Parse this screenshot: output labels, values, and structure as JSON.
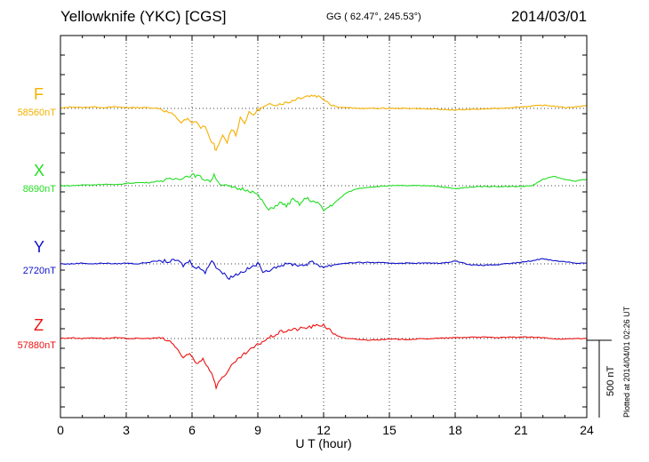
{
  "header": {
    "station": "Yellowknife (YKC)  [CGS]",
    "coords": "GG ( 62.47°, 245.53°)",
    "date": "2014/03/01"
  },
  "side_note": "Plotted at 2014/04/01 02:26 UT",
  "chart_data": {
    "type": "line",
    "xlabel": "U T (hour)",
    "xlim": [
      0,
      24
    ],
    "xticks": [
      "0",
      "3",
      "6",
      "9",
      "12",
      "15",
      "18",
      "21",
      "24"
    ],
    "grid": true,
    "scale_bar": {
      "label": "500 nT",
      "value_nT": 500
    },
    "series": [
      {
        "name": "F",
        "baseline_label": "58560nT",
        "baseline_nT": 58560,
        "color": "#f5b000",
        "x": [
          0,
          0.5,
          1,
          1.5,
          2,
          2.5,
          3,
          3.5,
          4,
          4.5,
          5,
          5.3,
          5.5,
          5.8,
          6,
          6.2,
          6.4,
          6.6,
          6.8,
          7,
          7.1,
          7.2,
          7.4,
          7.6,
          7.8,
          8,
          8.2,
          8.4,
          8.6,
          8.8,
          9,
          9.3,
          9.6,
          10,
          10.4,
          10.8,
          11.2,
          11.6,
          12,
          12.3,
          12.6,
          13,
          13.5,
          14,
          15,
          16,
          17,
          18,
          19,
          20,
          21,
          22,
          22.5,
          23,
          23.5,
          24
        ],
        "y": [
          0,
          10,
          5,
          10,
          5,
          10,
          5,
          5,
          5,
          0,
          -30,
          -60,
          -90,
          -70,
          -100,
          -80,
          -130,
          -110,
          -200,
          -230,
          -280,
          -240,
          -180,
          -220,
          -130,
          -170,
          -60,
          -90,
          -30,
          -40,
          -10,
          10,
          25,
          30,
          40,
          65,
          80,
          85,
          65,
          30,
          10,
          5,
          0,
          0,
          0,
          0,
          -5,
          -10,
          -5,
          0,
          10,
          20,
          15,
          5,
          10,
          20
        ]
      },
      {
        "name": "X",
        "baseline_label": "8690nT",
        "baseline_nT": 8690,
        "color": "#22dd22",
        "x": [
          0,
          0.5,
          1,
          1.5,
          2,
          2.5,
          3,
          3.5,
          4,
          4.5,
          5,
          5.5,
          6,
          6.3,
          6.6,
          6.9,
          7,
          7.2,
          7.5,
          7.8,
          8,
          8.3,
          8.6,
          8.9,
          9.1,
          9.3,
          9.5,
          9.8,
          10,
          10.3,
          10.6,
          10.9,
          11.2,
          11.5,
          11.8,
          12,
          12.3,
          12.6,
          13,
          13.5,
          14,
          15,
          16,
          17,
          18,
          19,
          20,
          21,
          21.5,
          22,
          22.5,
          23,
          23.5,
          24
        ],
        "y": [
          0,
          0,
          5,
          5,
          10,
          5,
          15,
          20,
          20,
          30,
          40,
          50,
          70,
          60,
          40,
          30,
          80,
          20,
          0,
          -10,
          -20,
          -20,
          -30,
          -50,
          -80,
          -120,
          -160,
          -130,
          -110,
          -130,
          -90,
          -120,
          -80,
          -100,
          -120,
          -160,
          -130,
          -100,
          -50,
          -20,
          -10,
          0,
          0,
          0,
          -20,
          -5,
          -5,
          -5,
          0,
          40,
          60,
          40,
          30,
          40
        ]
      },
      {
        "name": "Y",
        "baseline_label": "2720nT",
        "baseline_nT": 2720,
        "color": "#1010cc",
        "x": [
          0,
          0.5,
          1,
          1.5,
          2,
          2.5,
          3,
          3.5,
          4,
          4.5,
          5,
          5.3,
          5.6,
          5.9,
          6.1,
          6.3,
          6.6,
          6.9,
          7.1,
          7.4,
          7.7,
          8,
          8.3,
          8.6,
          9,
          9.3,
          9.6,
          10,
          10.5,
          11,
          11.5,
          12,
          12.5,
          13,
          14,
          15,
          16,
          17,
          17.5,
          18,
          18.5,
          19,
          20,
          21,
          21.5,
          22,
          22.5,
          23,
          23.5,
          24
        ],
        "y": [
          0,
          0,
          5,
          0,
          5,
          0,
          5,
          0,
          10,
          20,
          15,
          25,
          -10,
          20,
          -30,
          -10,
          -60,
          30,
          -20,
          -60,
          -90,
          -70,
          -50,
          -30,
          0,
          -60,
          -30,
          -10,
          0,
          -10,
          10,
          -20,
          -5,
          5,
          10,
          5,
          5,
          5,
          5,
          20,
          0,
          -10,
          -5,
          10,
          20,
          35,
          20,
          15,
          5,
          5
        ]
      },
      {
        "name": "Z",
        "baseline_label": "57880nT",
        "baseline_nT": 57880,
        "color": "#ee1111",
        "x": [
          0,
          0.5,
          1,
          1.5,
          2,
          2.5,
          3,
          3.5,
          4,
          4.5,
          5,
          5.3,
          5.6,
          5.9,
          6.2,
          6.5,
          6.8,
          7,
          7.1,
          7.3,
          7.6,
          7.8,
          8,
          8.3,
          8.6,
          8.9,
          9.2,
          9.6,
          10,
          10.4,
          10.8,
          11.2,
          11.6,
          12,
          12.3,
          12.6,
          13,
          14,
          15,
          16,
          17,
          18,
          19,
          20,
          21,
          22,
          22.5,
          23,
          23.5,
          24
        ],
        "y": [
          0,
          5,
          0,
          5,
          0,
          5,
          0,
          0,
          0,
          5,
          -20,
          -60,
          -130,
          -100,
          -160,
          -130,
          -200,
          -260,
          -320,
          -260,
          -220,
          -180,
          -150,
          -110,
          -80,
          -50,
          -20,
          10,
          40,
          55,
          60,
          70,
          80,
          90,
          50,
          20,
          0,
          -10,
          -5,
          -5,
          0,
          5,
          10,
          5,
          10,
          5,
          0,
          -5,
          0,
          0
        ]
      }
    ]
  }
}
